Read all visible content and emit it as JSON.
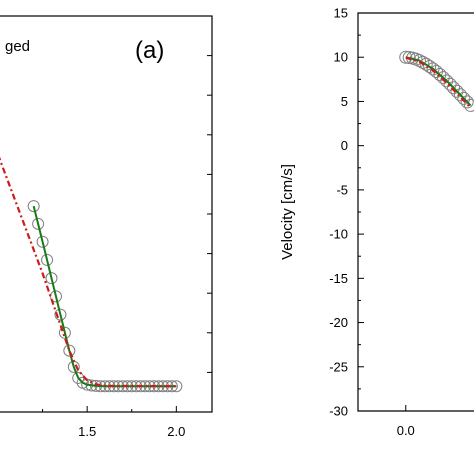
{
  "chart_data": [
    {
      "panel_label": "(a)",
      "legend_fragment": "ged",
      "type": "line",
      "xlim": [
        1.0,
        2.2
      ],
      "ylim": [
        0,
        10
      ],
      "xticks": [
        1.5,
        2.0
      ],
      "xtick_labels": [
        "1.5",
        "2.0"
      ],
      "series": [
        {
          "style": "markers",
          "color": "#7f7f7f",
          "x": [
            1.2,
            1.225,
            1.25,
            1.275,
            1.3,
            1.325,
            1.35,
            1.375,
            1.4,
            1.425,
            1.45,
            1.475,
            1.5,
            1.525,
            1.55,
            1.575,
            1.6,
            1.625,
            1.65,
            1.675,
            1.7,
            1.725,
            1.75,
            1.775,
            1.8,
            1.825,
            1.85,
            1.875,
            1.9,
            1.925,
            1.95,
            1.975,
            2.0
          ],
          "y": [
            5.2,
            4.75,
            4.3,
            3.84,
            3.38,
            2.92,
            2.46,
            2.0,
            1.55,
            1.14,
            0.86,
            0.74,
            0.69,
            0.67,
            0.66,
            0.65,
            0.65,
            0.65,
            0.65,
            0.65,
            0.65,
            0.65,
            0.65,
            0.65,
            0.65,
            0.65,
            0.65,
            0.65,
            0.65,
            0.65,
            0.65,
            0.65,
            0.65
          ]
        },
        {
          "style": "solid",
          "color": "#1a7a1a",
          "x": [
            1.2,
            1.25,
            1.3,
            1.35,
            1.4,
            1.425,
            1.45,
            1.475,
            1.5,
            1.55,
            1.6,
            2.0
          ],
          "y": [
            5.2,
            4.3,
            3.38,
            2.46,
            1.55,
            1.14,
            0.86,
            0.74,
            0.69,
            0.66,
            0.65,
            0.65
          ]
        },
        {
          "style": "dash-dot",
          "color": "#d01a1a",
          "x": [
            1.0,
            1.05,
            1.1,
            1.15,
            1.2,
            1.25,
            1.3,
            1.35,
            1.4,
            1.45,
            1.5,
            1.55,
            1.6,
            2.0
          ],
          "y": [
            6.5,
            5.9,
            5.3,
            4.7,
            4.1,
            3.5,
            2.85,
            2.2,
            1.55,
            1.05,
            0.8,
            0.7,
            0.66,
            0.65
          ]
        }
      ]
    },
    {
      "type": "line",
      "ylabel": "Velocity [cm/s]",
      "xlim": [
        -0.35,
        0.5
      ],
      "ylim": [
        -30,
        15
      ],
      "yticks": [
        15,
        10,
        5,
        0,
        -5,
        -10,
        -15,
        -20,
        -25,
        -30
      ],
      "ytick_labels": [
        "15",
        "10",
        "5",
        "0",
        "-5",
        "-10",
        "-15",
        "-20",
        "-25",
        "-30"
      ],
      "xticks": [
        0.0
      ],
      "xtick_labels": [
        "0.0"
      ],
      "series": [
        {
          "style": "markers",
          "color": "#7f7f7f",
          "x": [
            0.0,
            0.025,
            0.05,
            0.075,
            0.1,
            0.125,
            0.15,
            0.175,
            0.2,
            0.225,
            0.25,
            0.275,
            0.3,
            0.325,
            0.35,
            0.375,
            0.4,
            0.425,
            0.45,
            0.475
          ],
          "y": [
            10.0,
            9.97,
            9.9,
            9.78,
            9.62,
            9.42,
            9.2,
            8.95,
            8.68,
            8.38,
            8.05,
            7.7,
            7.33,
            6.95,
            6.55,
            6.15,
            5.75,
            5.35,
            4.95,
            4.55
          ]
        },
        {
          "style": "solid",
          "color": "#1a7a1a",
          "x": [
            0.0,
            0.1,
            0.2,
            0.3,
            0.4,
            0.475
          ],
          "y": [
            10.0,
            9.62,
            8.68,
            7.33,
            5.75,
            4.55
          ]
        },
        {
          "style": "dash-dot",
          "color": "#d01a1a",
          "x": [
            0.0,
            0.1,
            0.2,
            0.3,
            0.4,
            0.475
          ],
          "y": [
            9.95,
            9.5,
            8.5,
            7.1,
            5.5,
            4.3
          ]
        }
      ]
    }
  ]
}
